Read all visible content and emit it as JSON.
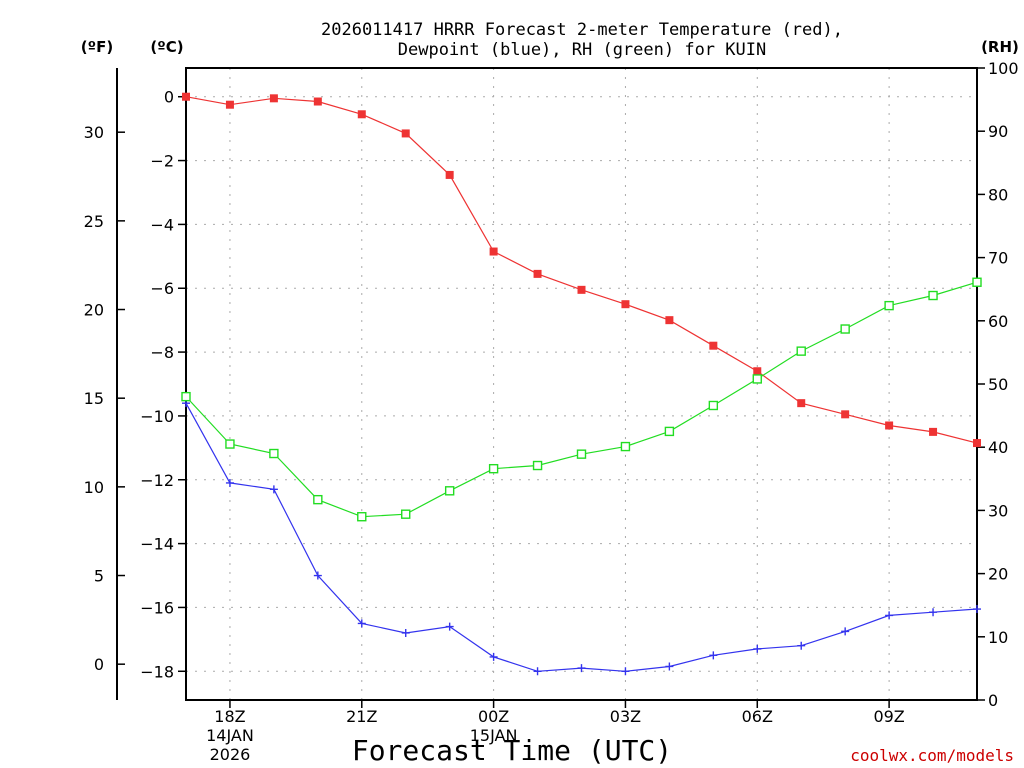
{
  "chart_data": {
    "type": "line",
    "title_lines": [
      "2026011417 HRRR Forecast 2-meter Temperature (red),",
      "Dewpoint (blue), RH (green) for KUIN"
    ],
    "xlabel": "Forecast Time (UTC)",
    "credit": "coolwx.com/models",
    "units": {
      "fahrenheit": "(ºF)",
      "celsius": "(ºC)",
      "rh": "(RH)"
    },
    "x_hours": [
      0,
      1,
      2,
      3,
      4,
      5,
      6,
      7,
      8,
      9,
      10,
      11,
      12,
      13,
      14,
      15,
      16,
      17,
      18
    ],
    "x_ticks": [
      {
        "hour": 1,
        "lines": [
          "18Z",
          "14JAN",
          "2026"
        ]
      },
      {
        "hour": 4,
        "lines": [
          "21Z"
        ]
      },
      {
        "hour": 7,
        "lines": [
          "00Z",
          "15JAN"
        ]
      },
      {
        "hour": 10,
        "lines": [
          "03Z"
        ]
      },
      {
        "hour": 13,
        "lines": [
          "06Z"
        ]
      },
      {
        "hour": 16,
        "lines": [
          "09Z"
        ]
      }
    ],
    "celsius_axis": {
      "range": [
        -18.9,
        0.9
      ],
      "ticks": [
        "0",
        "−2",
        "−4",
        "−6",
        "−8",
        "−10",
        "−12",
        "−14",
        "−16",
        "−18"
      ],
      "tick_values": [
        0,
        -2,
        -4,
        -6,
        -8,
        -10,
        -12,
        -14,
        -16,
        -18
      ]
    },
    "fahrenheit_axis": {
      "range": [
        -2.02,
        33.62
      ],
      "ticks": [
        "30",
        "25",
        "20",
        "15",
        "10",
        "5",
        "0"
      ],
      "tick_values": [
        30,
        25,
        20,
        15,
        10,
        5,
        0
      ]
    },
    "rh_axis": {
      "range": [
        0,
        100
      ],
      "ticks": [
        "100",
        "90",
        "80",
        "70",
        "60",
        "50",
        "40",
        "30",
        "20",
        "10",
        "0"
      ],
      "tick_values": [
        100,
        90,
        80,
        70,
        60,
        50,
        40,
        30,
        20,
        10,
        0
      ]
    },
    "series": [
      {
        "name": "Temperature",
        "unit": "C",
        "color": "#ee3333",
        "marker": "filled-square",
        "values": [
          0.0,
          -0.25,
          -0.05,
          -0.15,
          -0.55,
          -1.15,
          -2.45,
          -4.85,
          -5.55,
          -6.05,
          -6.5,
          -7.0,
          -7.8,
          -8.6,
          -9.6,
          -9.95,
          -10.3,
          -10.5,
          -10.85
        ]
      },
      {
        "name": "Dewpoint",
        "unit": "C",
        "color": "#3333ee",
        "marker": "plus",
        "values": [
          -9.6,
          -12.1,
          -12.3,
          -15.0,
          -16.5,
          -16.8,
          -16.6,
          -17.55,
          -18.0,
          -17.9,
          -18.0,
          -17.85,
          -17.5,
          -17.3,
          -17.2,
          -16.75,
          -16.25,
          -16.15,
          -16.05
        ]
      },
      {
        "name": "RH",
        "unit": "%",
        "color": "#22dd22",
        "marker": "open-square",
        "values": [
          48.0,
          40.5,
          39.0,
          31.7,
          29.0,
          29.4,
          33.1,
          36.6,
          37.1,
          38.9,
          40.1,
          42.5,
          46.6,
          50.8,
          55.2,
          58.7,
          62.4,
          64.0,
          66.1
        ]
      }
    ]
  }
}
